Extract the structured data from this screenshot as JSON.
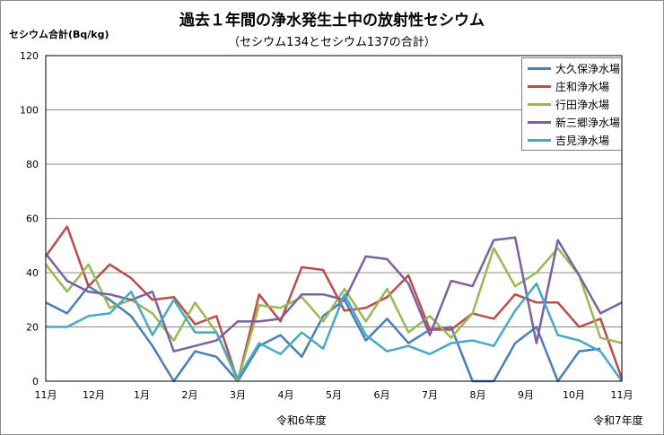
{
  "title": "過去１年間の浄水発生土中の放射性セシウム",
  "subtitle": "（セシウム134とセシウム137の合計）",
  "chart_data": {
    "type": "line",
    "title": "過去１年間の浄水発生土中の放射性セシウム",
    "subtitle": "（セシウム134とセシウム137の合計）",
    "ylabel": "セシウム合計(Bq/kg)",
    "ylim": [
      0,
      120
    ],
    "yticks": [
      "0",
      "20",
      "40",
      "60",
      "80",
      "100",
      "120"
    ],
    "ytick_values": [
      0,
      20,
      40,
      60,
      80,
      100,
      120
    ],
    "grid": true,
    "legend_position": "top-right",
    "month_labels": [
      "11月",
      "12月",
      "1月",
      "2月",
      "3月",
      "4月",
      "5月",
      "6月",
      "7月",
      "8月",
      "9月",
      "10月",
      "11月"
    ],
    "fiscal_year_labels": [
      "令和6年度",
      "令和7年度"
    ],
    "series": [
      {
        "name": "大久保浄水場",
        "color": "#4a7ebb",
        "values": [
          29,
          25,
          35,
          30,
          24,
          13,
          0,
          11,
          9,
          0,
          13,
          17,
          9,
          24,
          30,
          15,
          23,
          14,
          19,
          20,
          0,
          0,
          14,
          20,
          0,
          11,
          12
        ]
      },
      {
        "name": "庄和浄水場",
        "color": "#be4b48",
        "values": [
          46,
          57,
          35,
          43,
          38,
          30,
          31,
          21,
          24,
          0,
          32,
          22,
          42,
          41,
          26,
          27,
          31,
          39,
          19,
          19,
          25,
          23,
          32,
          29,
          29,
          20,
          23,
          1
        ]
      },
      {
        "name": "行田浄水場",
        "color": "#98b954",
        "values": [
          43,
          33,
          43,
          27,
          30,
          25,
          15,
          29,
          18,
          0,
          28,
          27,
          31,
          22,
          34,
          22,
          34,
          18,
          24,
          16,
          25,
          49,
          35,
          40,
          49,
          39,
          16,
          14
        ]
      },
      {
        "name": "新三郷浄水場",
        "color": "#7d60a0",
        "values": [
          47,
          37,
          33,
          32,
          30,
          33,
          11,
          13,
          15,
          22,
          22,
          23,
          32,
          32,
          30,
          46,
          45,
          36,
          17,
          37,
          35,
          52,
          53,
          14,
          52,
          39,
          25,
          29
        ]
      },
      {
        "name": "吉見浄水場",
        "color": "#46aac5",
        "values": [
          20,
          20,
          24,
          25,
          33,
          17,
          30,
          18,
          18,
          1,
          14,
          10,
          18,
          12,
          32,
          17,
          11,
          13,
          10,
          14,
          15,
          13,
          26,
          36,
          17,
          15,
          11,
          0
        ]
      }
    ]
  }
}
